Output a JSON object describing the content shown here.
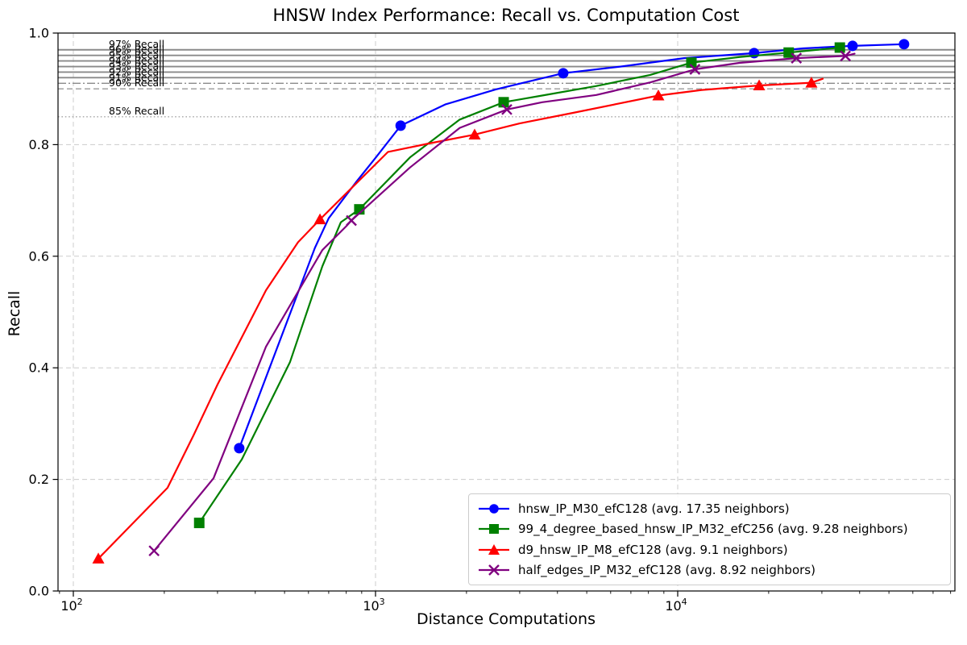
{
  "chart_data": {
    "type": "line",
    "title": "HNSW Index Performance: Recall vs. Computation Cost",
    "xlabel": "Distance Computations",
    "ylabel": "Recall",
    "x_scale": "log",
    "xlim": [
      89,
      82600
    ],
    "ylim": [
      0.0,
      1.0
    ],
    "grid": true,
    "legend_position": "lower right",
    "x_ticks": [
      {
        "value": 100,
        "base": "10",
        "exponent": "2"
      },
      {
        "value": 1000,
        "base": "10",
        "exponent": "3"
      },
      {
        "value": 10000,
        "base": "10",
        "exponent": "4"
      }
    ],
    "y_ticks": [
      {
        "value": 0.0,
        "label": "0.0"
      },
      {
        "value": 0.2,
        "label": "0.2"
      },
      {
        "value": 0.4,
        "label": "0.4"
      },
      {
        "value": 0.6,
        "label": "0.6"
      },
      {
        "value": 0.8,
        "label": "0.8"
      },
      {
        "value": 1.0,
        "label": "1.0"
      }
    ],
    "reference_lines": [
      {
        "recall": 0.97,
        "label": "97% Recall",
        "style": "solid",
        "color": "#8a8a8a"
      },
      {
        "recall": 0.96,
        "label": "96% Recall",
        "style": "solid",
        "color": "#8a8a8a"
      },
      {
        "recall": 0.95,
        "label": "95% Recall",
        "style": "solid",
        "color": "#8a8a8a"
      },
      {
        "recall": 0.94,
        "label": "94% Recall",
        "style": "solid",
        "color": "#8a8a8a"
      },
      {
        "recall": 0.93,
        "label": "93% Recall",
        "style": "solid",
        "color": "#8a8a8a"
      },
      {
        "recall": 0.92,
        "label": "92% Recall",
        "style": "solid",
        "color": "#8a8a8a"
      },
      {
        "recall": 0.91,
        "label": "91% Recall",
        "style": "dashdot",
        "color": "#8a8a8a"
      },
      {
        "recall": 0.9,
        "label": "90% Recall",
        "style": "dashed",
        "color": "#999999"
      },
      {
        "recall": 0.85,
        "label": "85% Recall",
        "style": "dotted",
        "color": "#a6a6a6"
      }
    ],
    "series": [
      {
        "name": "hnsw_IP_M30_efC128",
        "legend_label": "hnsw_IP_M30_efC128 (avg. 17.35 neighbors)",
        "avg_neighbors": 17.35,
        "color": "#0000ff",
        "marker": "circle",
        "line": [
          [
            354,
            0.256
          ],
          [
            630,
            0.615
          ],
          [
            700,
            0.668
          ],
          [
            860,
            0.732
          ],
          [
            1006,
            0.778
          ],
          [
            1211,
            0.834
          ],
          [
            1700,
            0.872
          ],
          [
            2500,
            0.899
          ],
          [
            4180,
            0.928
          ],
          [
            6500,
            0.94
          ],
          [
            10500,
            0.955
          ],
          [
            17900,
            0.964
          ],
          [
            26000,
            0.9725
          ],
          [
            37900,
            0.977
          ],
          [
            56100,
            0.98
          ]
        ],
        "markers": [
          [
            354,
            0.256
          ],
          [
            1211,
            0.834
          ],
          [
            4180,
            0.928
          ],
          [
            17900,
            0.964
          ],
          [
            37900,
            0.977
          ],
          [
            56100,
            0.98
          ]
        ]
      },
      {
        "name": "99_4_degree_based_hnsw_IP_M32_efC256",
        "legend_label": "99_4_degree_based_hnsw_IP_M32_efC256 (avg. 9.28 neighbors)",
        "avg_neighbors": 9.28,
        "color": "#008000",
        "marker": "square",
        "line": [
          [
            261,
            0.122
          ],
          [
            361,
            0.236
          ],
          [
            521,
            0.41
          ],
          [
            667,
            0.582
          ],
          [
            768,
            0.661
          ],
          [
            884,
            0.684
          ],
          [
            1300,
            0.777
          ],
          [
            1900,
            0.845
          ],
          [
            2655,
            0.876
          ],
          [
            3560,
            0.888
          ],
          [
            5380,
            0.905
          ],
          [
            8110,
            0.925
          ],
          [
            11100,
            0.947
          ],
          [
            16000,
            0.957
          ],
          [
            23300,
            0.965
          ],
          [
            34400,
            0.974
          ]
        ],
        "markers": [
          [
            261,
            0.122
          ],
          [
            884,
            0.684
          ],
          [
            2655,
            0.876
          ],
          [
            11100,
            0.947
          ],
          [
            23300,
            0.965
          ],
          [
            34400,
            0.974
          ]
        ]
      },
      {
        "name": "d9_hnsw_IP_M8_efC128",
        "legend_label": "d9_hnsw_IP_M8_efC128 (avg. 9.1 neighbors)",
        "avg_neighbors": 9.1,
        "color": "#ff0000",
        "marker": "triangle",
        "line": [
          [
            121,
            0.058
          ],
          [
            205,
            0.185
          ],
          [
            250,
            0.279
          ],
          [
            300,
            0.37
          ],
          [
            434,
            0.539
          ],
          [
            554,
            0.625
          ],
          [
            655,
            0.666
          ],
          [
            1100,
            0.787
          ],
          [
            1500,
            0.802
          ],
          [
            2128,
            0.818
          ],
          [
            3000,
            0.838
          ],
          [
            4500,
            0.857
          ],
          [
            8630,
            0.888
          ],
          [
            12000,
            0.898
          ],
          [
            18600,
            0.906
          ],
          [
            27700,
            0.911
          ],
          [
            30200,
            0.918
          ]
        ],
        "markers": [
          [
            121,
            0.058
          ],
          [
            655,
            0.666
          ],
          [
            2128,
            0.818
          ],
          [
            8630,
            0.888
          ],
          [
            18600,
            0.906
          ],
          [
            27700,
            0.911
          ]
        ]
      },
      {
        "name": "half_edges_IP_M32_efC128",
        "legend_label": "half_edges_IP_M32_efC128 (avg. 8.92 neighbors)",
        "avg_neighbors": 8.92,
        "color": "#800080",
        "marker": "x",
        "line": [
          [
            185,
            0.072
          ],
          [
            291,
            0.202
          ],
          [
            434,
            0.438
          ],
          [
            667,
            0.611
          ],
          [
            801,
            0.654
          ],
          [
            832,
            0.664
          ],
          [
            1300,
            0.759
          ],
          [
            1900,
            0.83
          ],
          [
            2720,
            0.863
          ],
          [
            3560,
            0.876
          ],
          [
            5380,
            0.889
          ],
          [
            8110,
            0.9115
          ],
          [
            11400,
            0.935
          ],
          [
            16000,
            0.9465
          ],
          [
            24700,
            0.955
          ],
          [
            35900,
            0.959
          ],
          [
            38500,
            0.963
          ]
        ],
        "markers": [
          [
            185,
            0.072
          ],
          [
            832,
            0.664
          ],
          [
            2720,
            0.863
          ],
          [
            11400,
            0.935
          ],
          [
            24700,
            0.955
          ],
          [
            35900,
            0.959
          ]
        ]
      }
    ]
  }
}
